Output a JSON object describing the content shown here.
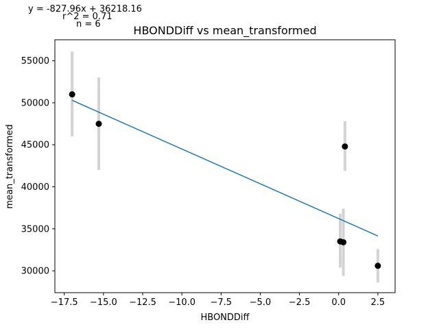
{
  "chart_data": {
    "type": "scatter",
    "title": "HBONDDiff vs mean_transformed",
    "xlabel": "HBONDDiff",
    "ylabel": "mean_transformed",
    "xlim": [
      -18.1,
      3.6
    ],
    "ylim": [
      27400,
      57500
    ],
    "xticks": [
      -17.5,
      -15.0,
      -12.5,
      -10.0,
      -7.5,
      -5.0,
      -2.5,
      0.0,
      2.5
    ],
    "xtick_labels": [
      "−17.5",
      "−15.0",
      "−12.5",
      "−10.0",
      "−7.5",
      "−5.0",
      "−2.5",
      "0.0",
      "2.5"
    ],
    "yticks": [
      30000,
      35000,
      40000,
      45000,
      50000,
      55000
    ],
    "ytick_labels": [
      "30000",
      "35000",
      "40000",
      "45000",
      "50000",
      "55000"
    ],
    "grid": false,
    "stats": {
      "equation": "y = -827.96x + 36218.16",
      "r2": "r^2 = 0.71",
      "n": "n = 6"
    },
    "fit_line": {
      "slope": -827.96,
      "intercept": 36218.16,
      "x_range": [
        -17.0,
        2.5
      ]
    },
    "points": [
      {
        "x": -17.0,
        "y": 51000,
        "err_low": 46000,
        "err_high": 56100
      },
      {
        "x": -15.3,
        "y": 47500,
        "err_low": 42000,
        "err_high": 53000
      },
      {
        "x": 0.4,
        "y": 44800,
        "err_low": 41900,
        "err_high": 47800
      },
      {
        "x": 0.1,
        "y": 33500,
        "err_low": 30400,
        "err_high": 36800
      },
      {
        "x": 0.3,
        "y": 33400,
        "err_low": 29400,
        "err_high": 37400
      },
      {
        "x": 2.5,
        "y": 30600,
        "err_low": 28600,
        "err_high": 32600
      }
    ],
    "colors": {
      "points": "#000000",
      "error_bars": "#d3d3d3",
      "fit_line": "#1f77b4",
      "axes": "#000000"
    }
  }
}
